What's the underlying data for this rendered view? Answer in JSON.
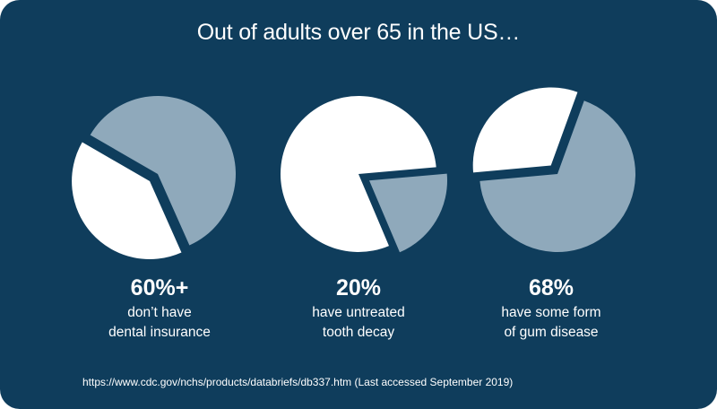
{
  "title": "Out of adults over 65 in the US…",
  "colors": {
    "background": "#0f3d5c",
    "highlight": "#ffffff",
    "rest": "#8fa9bb"
  },
  "chart_data": [
    {
      "type": "pie",
      "values": [
        60,
        40
      ],
      "value_text": "60%+",
      "caption": [
        "don’t have",
        "dental insurance"
      ]
    },
    {
      "type": "pie",
      "values": [
        20,
        80
      ],
      "value_text": "20%",
      "caption": [
        "have untreated",
        "tooth decay"
      ]
    },
    {
      "type": "pie",
      "values": [
        68,
        32
      ],
      "value_text": "68%",
      "caption": [
        "have some form",
        "of gum disease"
      ]
    }
  ],
  "source": "https://www.cdc.gov/nchs/products/databriefs/db337.htm (Last accessed September 2019)"
}
